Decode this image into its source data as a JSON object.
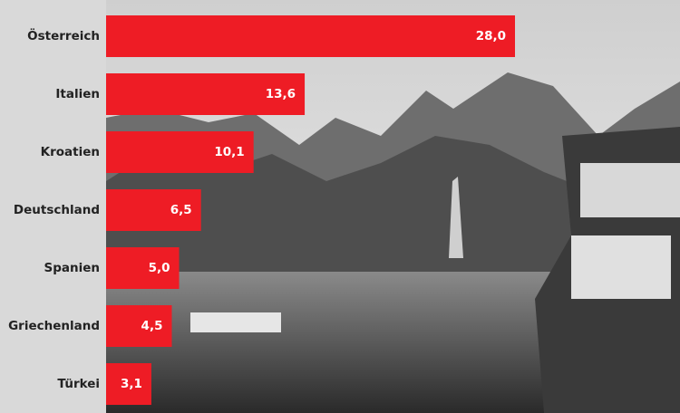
{
  "chart_data": {
    "type": "bar",
    "orientation": "horizontal",
    "categories": [
      "Österreich",
      "Italien",
      "Kroatien",
      "Deutschland",
      "Spanien",
      "Griechenland",
      "Türkei"
    ],
    "values": [
      28.0,
      13.6,
      10.1,
      6.5,
      5.0,
      4.5,
      3.1
    ],
    "value_labels": [
      "28,0",
      "13,6",
      "10,1",
      "6,5",
      "5,0",
      "4,5",
      "3,1"
    ],
    "color": "#ee1c25"
  }
}
